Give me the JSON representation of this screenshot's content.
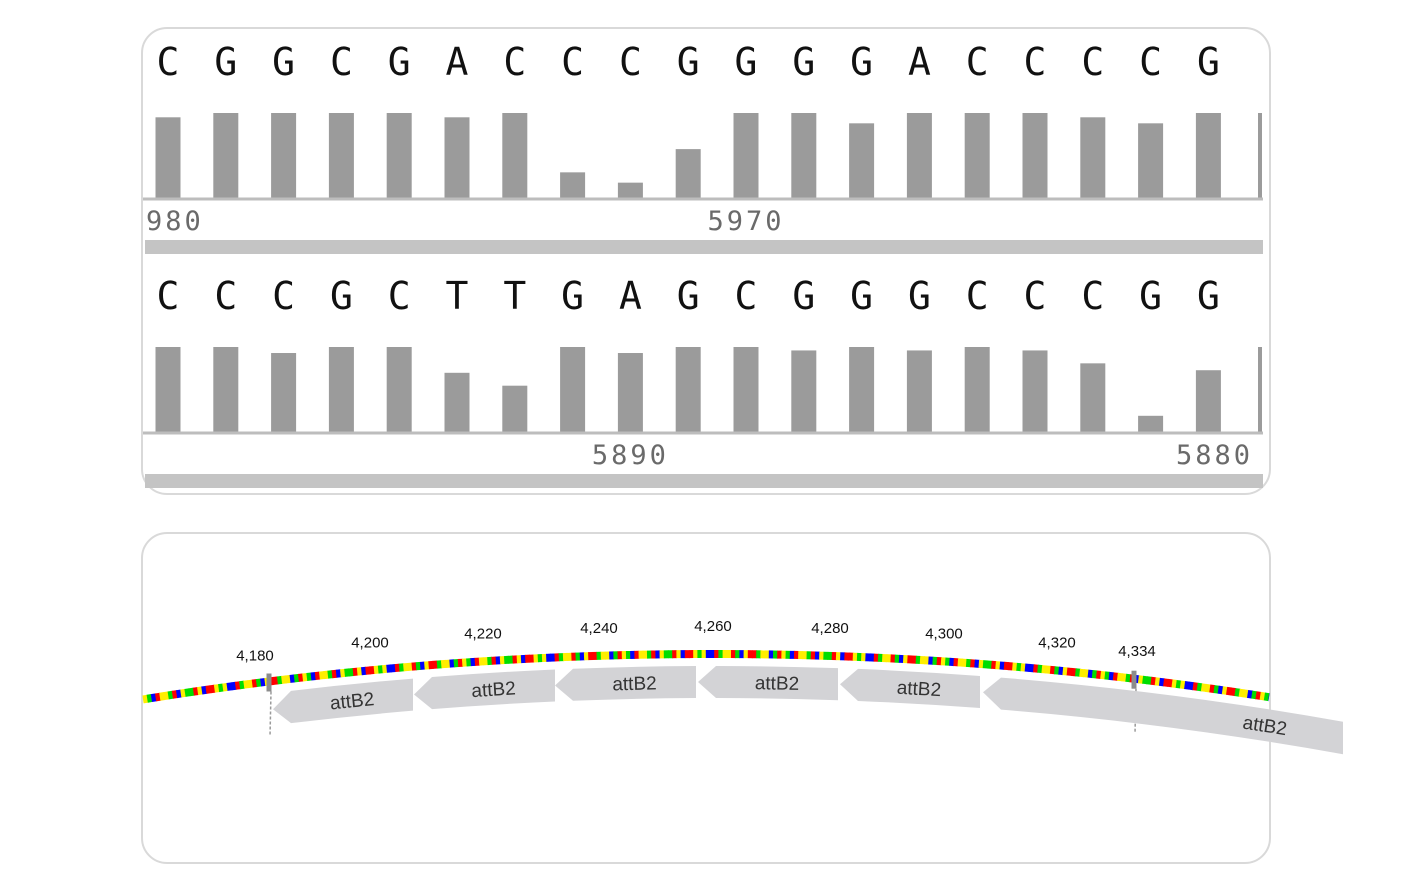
{
  "trace": {
    "rows": [
      {
        "bases": [
          "C",
          "G",
          "G",
          "C",
          "G",
          "A",
          "C",
          "C",
          "C",
          "G",
          "G",
          "G",
          "G",
          "A",
          "C",
          "C",
          "C",
          "C",
          "G"
        ],
        "quality": [
          0.95,
          1.0,
          1.0,
          1.0,
          1.0,
          0.95,
          1.0,
          0.31,
          0.19,
          0.58,
          1.0,
          1.0,
          0.88,
          1.0,
          1.0,
          1.0,
          0.95,
          0.88,
          1.0
        ],
        "positions": [
          {
            "label": "980",
            "at": 0.5
          },
          {
            "label": "5970",
            "at": 10
          }
        ]
      },
      {
        "bases": [
          "C",
          "C",
          "C",
          "G",
          "C",
          "T",
          "T",
          "G",
          "A",
          "G",
          "C",
          "G",
          "G",
          "G",
          "C",
          "C",
          "C",
          "G",
          "G"
        ],
        "quality": [
          1.0,
          1.0,
          0.93,
          1.0,
          1.0,
          0.7,
          0.55,
          1.0,
          0.93,
          1.0,
          1.0,
          0.96,
          1.0,
          0.96,
          1.0,
          0.96,
          0.81,
          0.2,
          0.73
        ],
        "positions": [
          {
            "label": "5890",
            "at": 8
          },
          {
            "label": "5880",
            "at": 18
          }
        ]
      }
    ]
  },
  "map": {
    "ticks": [
      "4,180",
      "4,200",
      "4,220",
      "4,240",
      "4,260",
      "4,280",
      "4,300",
      "4,320",
      "4,334"
    ],
    "features": [
      "attB2",
      "attB2",
      "attB2",
      "attB2",
      "attB2",
      "attB2"
    ],
    "base_colors": {
      "A": "#00dd00",
      "C": "#0000ff",
      "G": "#ffee00",
      "T": "#ff0000"
    }
  }
}
